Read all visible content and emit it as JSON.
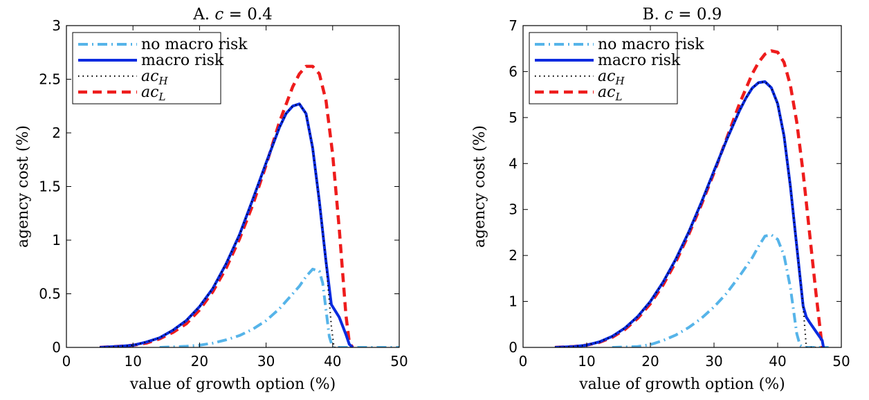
{
  "colors": {
    "no_macro_risk": "#56B4E9",
    "macro_risk": "#0A2BE0",
    "ac_H": "#000000",
    "ac_L": "#EE1C1C"
  },
  "legend_entries": [
    "no macro risk",
    "macro risk",
    "acH",
    "acL"
  ],
  "chart_data": [
    {
      "type": "line",
      "title": "A. c = 0.4",
      "xlabel": "value of growth option (%)",
      "ylabel": "agency cost (%)",
      "xlim": [
        0,
        50
      ],
      "ylim": [
        0,
        3
      ],
      "xticks": [
        "0",
        "10",
        "20",
        "30",
        "40",
        "50"
      ],
      "yticks": [
        "0",
        "0.5",
        "1",
        "1.5",
        "2",
        "2.5",
        "3"
      ],
      "legend": "top-left",
      "grid": false,
      "series": [
        {
          "name": "no macro risk",
          "style": "dashdot",
          "x": [
            14,
            18,
            20,
            22,
            24,
            26,
            28,
            30,
            32,
            34,
            35,
            36,
            37,
            38,
            38.5,
            39,
            39.5,
            40,
            45,
            50
          ],
          "y": [
            0,
            0.01,
            0.02,
            0.04,
            0.07,
            0.11,
            0.17,
            0.25,
            0.36,
            0.5,
            0.57,
            0.66,
            0.73,
            0.71,
            0.6,
            0.35,
            0.1,
            0,
            0,
            0
          ]
        },
        {
          "name": "macro risk",
          "style": "solid",
          "x": [
            5,
            8,
            10,
            12,
            14,
            16,
            18,
            20,
            22,
            24,
            26,
            28,
            30,
            32,
            33,
            34,
            35,
            36,
            37,
            38,
            39,
            39.8,
            40.2,
            41,
            42,
            42.5,
            43
          ],
          "y": [
            0,
            0.01,
            0.02,
            0.05,
            0.09,
            0.16,
            0.25,
            0.38,
            0.55,
            0.78,
            1.05,
            1.38,
            1.72,
            2.05,
            2.18,
            2.25,
            2.27,
            2.18,
            1.86,
            1.36,
            0.8,
            0.4,
            0.36,
            0.28,
            0.12,
            0.03,
            0
          ]
        },
        {
          "name": "acH",
          "style": "dotted",
          "x": [
            5,
            8,
            10,
            12,
            14,
            16,
            18,
            20,
            22,
            24,
            26,
            28,
            30,
            32,
            33,
            34,
            35,
            36,
            37,
            38,
            39,
            39.8,
            40.2,
            41
          ],
          "y": [
            0,
            0.01,
            0.02,
            0.05,
            0.09,
            0.16,
            0.25,
            0.38,
            0.55,
            0.78,
            1.05,
            1.38,
            1.72,
            2.05,
            2.18,
            2.25,
            2.27,
            2.18,
            1.86,
            1.36,
            0.8,
            0.2,
            0,
            0
          ]
        },
        {
          "name": "acL",
          "style": "dashed",
          "x": [
            5,
            8,
            10,
            12,
            14,
            16,
            18,
            20,
            22,
            24,
            26,
            28,
            30,
            32,
            34,
            35,
            36,
            37,
            38,
            39,
            40,
            41,
            41.5,
            42,
            42.5,
            43
          ],
          "y": [
            0,
            0.01,
            0.02,
            0.04,
            0.08,
            0.14,
            0.22,
            0.35,
            0.52,
            0.74,
            1.01,
            1.33,
            1.7,
            2.1,
            2.43,
            2.55,
            2.62,
            2.62,
            2.55,
            2.3,
            1.8,
            1.1,
            0.7,
            0.3,
            0.05,
            0
          ]
        }
      ]
    },
    {
      "type": "line",
      "title": "B. c = 0.9",
      "xlabel": "value of growth option (%)",
      "ylabel": "agency cost (%)",
      "xlim": [
        0,
        50
      ],
      "ylim": [
        0,
        7
      ],
      "xticks": [
        "0",
        "10",
        "20",
        "30",
        "40",
        "50"
      ],
      "yticks": [
        "0",
        "1",
        "2",
        "3",
        "4",
        "5",
        "6",
        "7"
      ],
      "legend": "top-left",
      "grid": false,
      "series": [
        {
          "name": "no macro risk",
          "style": "dashdot",
          "x": [
            14,
            18,
            20,
            22,
            24,
            26,
            28,
            30,
            32,
            34,
            36,
            37,
            38,
            39,
            40,
            41,
            42,
            42.5,
            43,
            43.5,
            44,
            48
          ],
          "y": [
            0,
            0.02,
            0.06,
            0.15,
            0.27,
            0.43,
            0.63,
            0.88,
            1.18,
            1.55,
            1.95,
            2.2,
            2.42,
            2.45,
            2.35,
            2.0,
            1.3,
            0.8,
            0.3,
            0.05,
            0,
            0
          ]
        },
        {
          "name": "macro risk",
          "style": "solid",
          "x": [
            5,
            8,
            10,
            12,
            14,
            16,
            18,
            20,
            22,
            24,
            26,
            28,
            30,
            32,
            34,
            35,
            36,
            37,
            38,
            39,
            40,
            41,
            42,
            43,
            44,
            44.5,
            45,
            46,
            47,
            47.2
          ],
          "y": [
            0,
            0.02,
            0.05,
            0.12,
            0.24,
            0.42,
            0.67,
            1.0,
            1.42,
            1.92,
            2.5,
            3.15,
            3.84,
            4.52,
            5.15,
            5.42,
            5.64,
            5.76,
            5.78,
            5.65,
            5.3,
            4.6,
            3.5,
            2.2,
            0.9,
            0.66,
            0.55,
            0.35,
            0.15,
            0
          ]
        },
        {
          "name": "acH",
          "style": "dotted",
          "x": [
            5,
            8,
            10,
            12,
            14,
            16,
            18,
            20,
            22,
            24,
            26,
            28,
            30,
            32,
            34,
            35,
            36,
            37,
            38,
            39,
            40,
            41,
            42,
            43,
            44,
            44.5,
            46
          ],
          "y": [
            0,
            0.02,
            0.05,
            0.12,
            0.24,
            0.42,
            0.67,
            1.0,
            1.42,
            1.92,
            2.5,
            3.15,
            3.84,
            4.52,
            5.15,
            5.42,
            5.64,
            5.76,
            5.78,
            5.65,
            5.3,
            4.6,
            3.5,
            2.2,
            0.9,
            0,
            0
          ]
        },
        {
          "name": "acL",
          "style": "dashed",
          "x": [
            5,
            8,
            10,
            12,
            14,
            16,
            18,
            20,
            22,
            24,
            26,
            28,
            30,
            32,
            34,
            36,
            37,
            38,
            39,
            40,
            41,
            42,
            43,
            44,
            45,
            46,
            46.5,
            47
          ],
          "y": [
            0,
            0.02,
            0.05,
            0.11,
            0.22,
            0.39,
            0.63,
            0.95,
            1.36,
            1.86,
            2.45,
            3.1,
            3.8,
            4.55,
            5.3,
            5.95,
            6.2,
            6.38,
            6.45,
            6.42,
            6.2,
            5.7,
            4.9,
            3.8,
            2.5,
            1.2,
            0.6,
            0
          ]
        }
      ]
    }
  ]
}
